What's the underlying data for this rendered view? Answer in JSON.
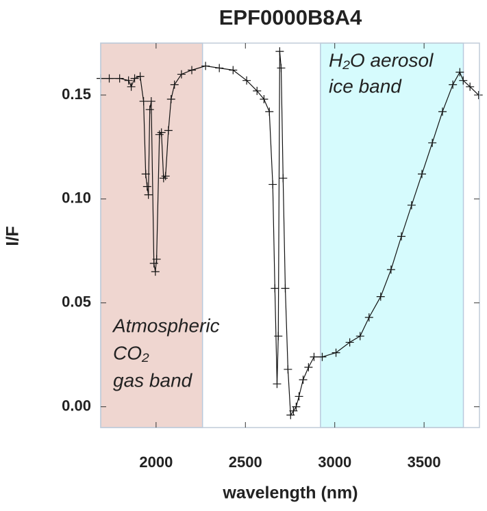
{
  "chart_data": {
    "type": "line",
    "title": "EPF0000B8A4",
    "xlabel": "wavelength (nm)",
    "ylabel": "I/F",
    "xlim": [
      1690,
      3810
    ],
    "ylim": [
      -0.01,
      0.175
    ],
    "xticks": [
      2000,
      2500,
      3000,
      3500
    ],
    "yticks": [
      {
        "value": 0,
        "label": "0.00"
      },
      {
        "value": 0.05,
        "label": "0.05"
      },
      {
        "value": 0.1,
        "label": "0.10"
      },
      {
        "value": 0.15,
        "label": "0.15"
      }
    ],
    "marker": "+",
    "color": "#111111",
    "bands": [
      {
        "range": [
          1690,
          2260
        ],
        "color": "#efd6d0",
        "label": [
          "Atmospheric",
          "CO₂",
          "gas band"
        ]
      },
      {
        "range": [
          2920,
          3720
        ],
        "color": "#d6fbfd",
        "label": [
          "H₂O aerosol",
          "ice band"
        ]
      }
    ],
    "x": [
      1690,
      1738,
      1796,
      1846,
      1861,
      1880,
      1911,
      1930,
      1942,
      1950,
      1957,
      1965,
      1973,
      1988,
      1996,
      2003,
      2019,
      2030,
      2042,
      2053,
      2069,
      2084,
      2103,
      2142,
      2200,
      2277,
      2354,
      2431,
      2507,
      2565,
      2604,
      2634,
      2653,
      2665,
      2677,
      2684,
      2692,
      2700,
      2711,
      2723,
      2738,
      2753,
      2769,
      2784,
      2800,
      2823,
      2853,
      2884,
      2930,
      3007,
      3084,
      3142,
      3192,
      3257,
      3315,
      3373,
      3430,
      3488,
      3546,
      3603,
      3661,
      3700,
      3719,
      3757,
      3805
    ],
    "values": [
      0.158,
      0.158,
      0.158,
      0.157,
      0.154,
      0.158,
      0.159,
      0.147,
      0.112,
      0.106,
      0.102,
      0.143,
      0.147,
      0.069,
      0.065,
      0.071,
      0.131,
      0.132,
      0.11,
      0.111,
      0.133,
      0.148,
      0.155,
      0.16,
      0.162,
      0.164,
      0.163,
      0.162,
      0.157,
      0.152,
      0.148,
      0.142,
      0.107,
      0.057,
      0.011,
      0.034,
      0.171,
      0.163,
      0.11,
      0.057,
      0.018,
      -0.004,
      -0.002,
      0,
      0.005,
      0.013,
      0.019,
      0.024,
      0.024,
      0.026,
      0.031,
      0.034,
      0.043,
      0.053,
      0.066,
      0.082,
      0.097,
      0.112,
      0.127,
      0.142,
      0.155,
      0.161,
      0.157,
      0.154,
      0.15
    ]
  }
}
